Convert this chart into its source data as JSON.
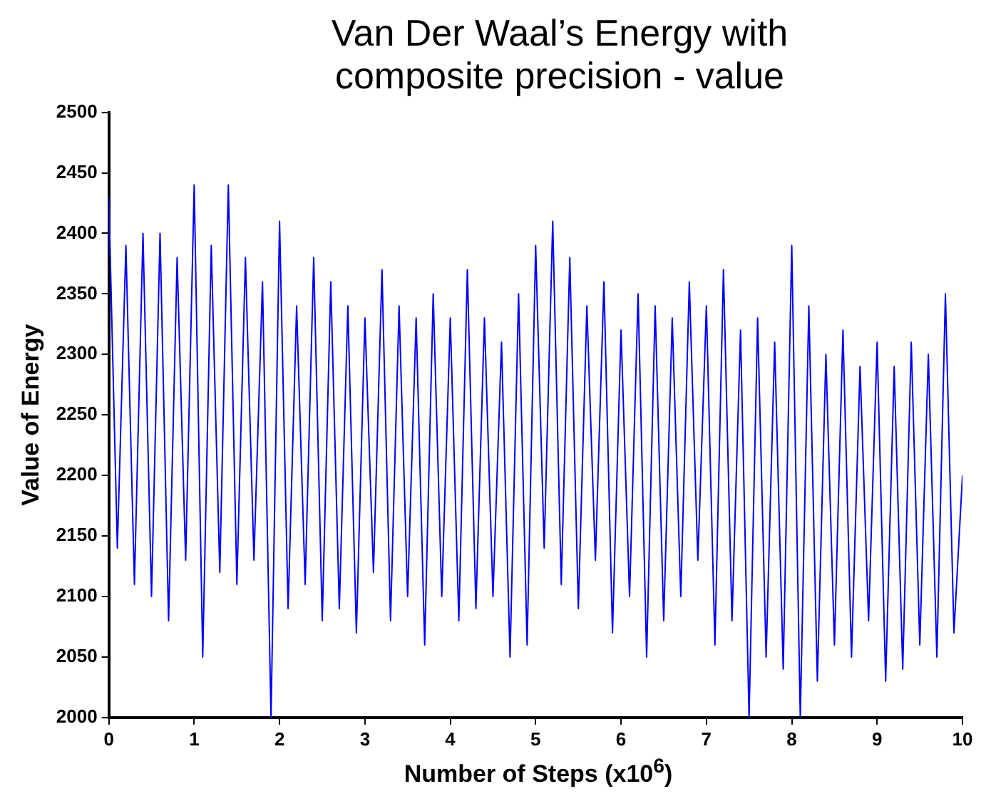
{
  "chart_data": {
    "type": "line",
    "title": "Van Der Waal’s Energy with\ncomposite precision - value",
    "xlabel": "Number of Steps (x10$^{6}$)",
    "ylabel": "Value of Energy",
    "x": [
      0,
      0.1,
      0.2,
      0.3,
      0.4,
      0.5,
      0.6,
      0.7,
      0.8,
      0.9,
      1,
      1.1,
      1.2,
      1.3,
      1.4,
      1.5,
      1.6,
      1.7,
      1.8,
      1.9,
      2,
      2.1,
      2.2,
      2.3,
      2.4,
      2.5,
      2.6,
      2.7,
      2.8,
      2.9,
      3,
      3.1,
      3.2,
      3.3,
      3.4,
      3.5,
      3.6,
      3.7,
      3.8,
      3.9,
      4,
      4.1,
      4.2,
      4.3,
      4.4,
      4.5,
      4.6,
      4.7,
      4.8,
      4.9,
      5,
      5.1,
      5.2,
      5.3,
      5.4,
      5.5,
      5.6,
      5.7,
      5.8,
      5.9,
      6,
      6.1,
      6.2,
      6.3,
      6.4,
      6.5,
      6.6,
      6.7,
      6.8,
      6.9,
      7,
      7.1,
      7.2,
      7.3,
      7.4,
      7.5,
      7.6,
      7.7,
      7.8,
      7.9,
      8,
      8.1,
      8.2,
      8.3,
      8.4,
      8.5,
      8.6,
      8.7,
      8.8,
      8.9,
      9,
      9.1,
      9.2,
      9.3,
      9.4,
      9.5,
      9.6,
      9.7,
      9.8,
      9.9,
      10
    ],
    "series": [
      {
        "color": "#0000ff",
        "values": [
          2430,
          2140,
          2390,
          2110,
          2400,
          2100,
          2400,
          2080,
          2380,
          2130,
          2440,
          2050,
          2390,
          2120,
          2440,
          2110,
          2380,
          2130,
          2360,
          2000,
          2410,
          2090,
          2340,
          2110,
          2380,
          2080,
          2360,
          2090,
          2340,
          2070,
          2330,
          2120,
          2370,
          2080,
          2340,
          2100,
          2330,
          2060,
          2350,
          2100,
          2330,
          2080,
          2370,
          2090,
          2330,
          2100,
          2310,
          2050,
          2350,
          2060,
          2390,
          2140,
          2410,
          2110,
          2380,
          2090,
          2340,
          2130,
          2360,
          2070,
          2320,
          2100,
          2350,
          2050,
          2340,
          2080,
          2330,
          2100,
          2360,
          2130,
          2340,
          2060,
          2370,
          2080,
          2320,
          2000,
          2330,
          2050,
          2310,
          2040,
          2390,
          2000,
          2340,
          2030,
          2300,
          2060,
          2320,
          2050,
          2290,
          2080,
          2310,
          2030,
          2290,
          2040,
          2310,
          2060,
          2300,
          2050,
          2350,
          2070,
          2200
        ]
      }
    ],
    "xlim": [
      0,
      10
    ],
    "xticks": [
      0,
      1,
      2,
      3,
      4,
      5,
      6,
      7,
      8,
      9,
      10
    ],
    "ylim": [
      2000,
      2500
    ],
    "yticks": [
      2000,
      2050,
      2100,
      2150,
      2200,
      2250,
      2300,
      2350,
      2400,
      2450,
      2500
    ],
    "grid": false,
    "legend": false,
    "marker": "none",
    "line_style": "solid"
  }
}
